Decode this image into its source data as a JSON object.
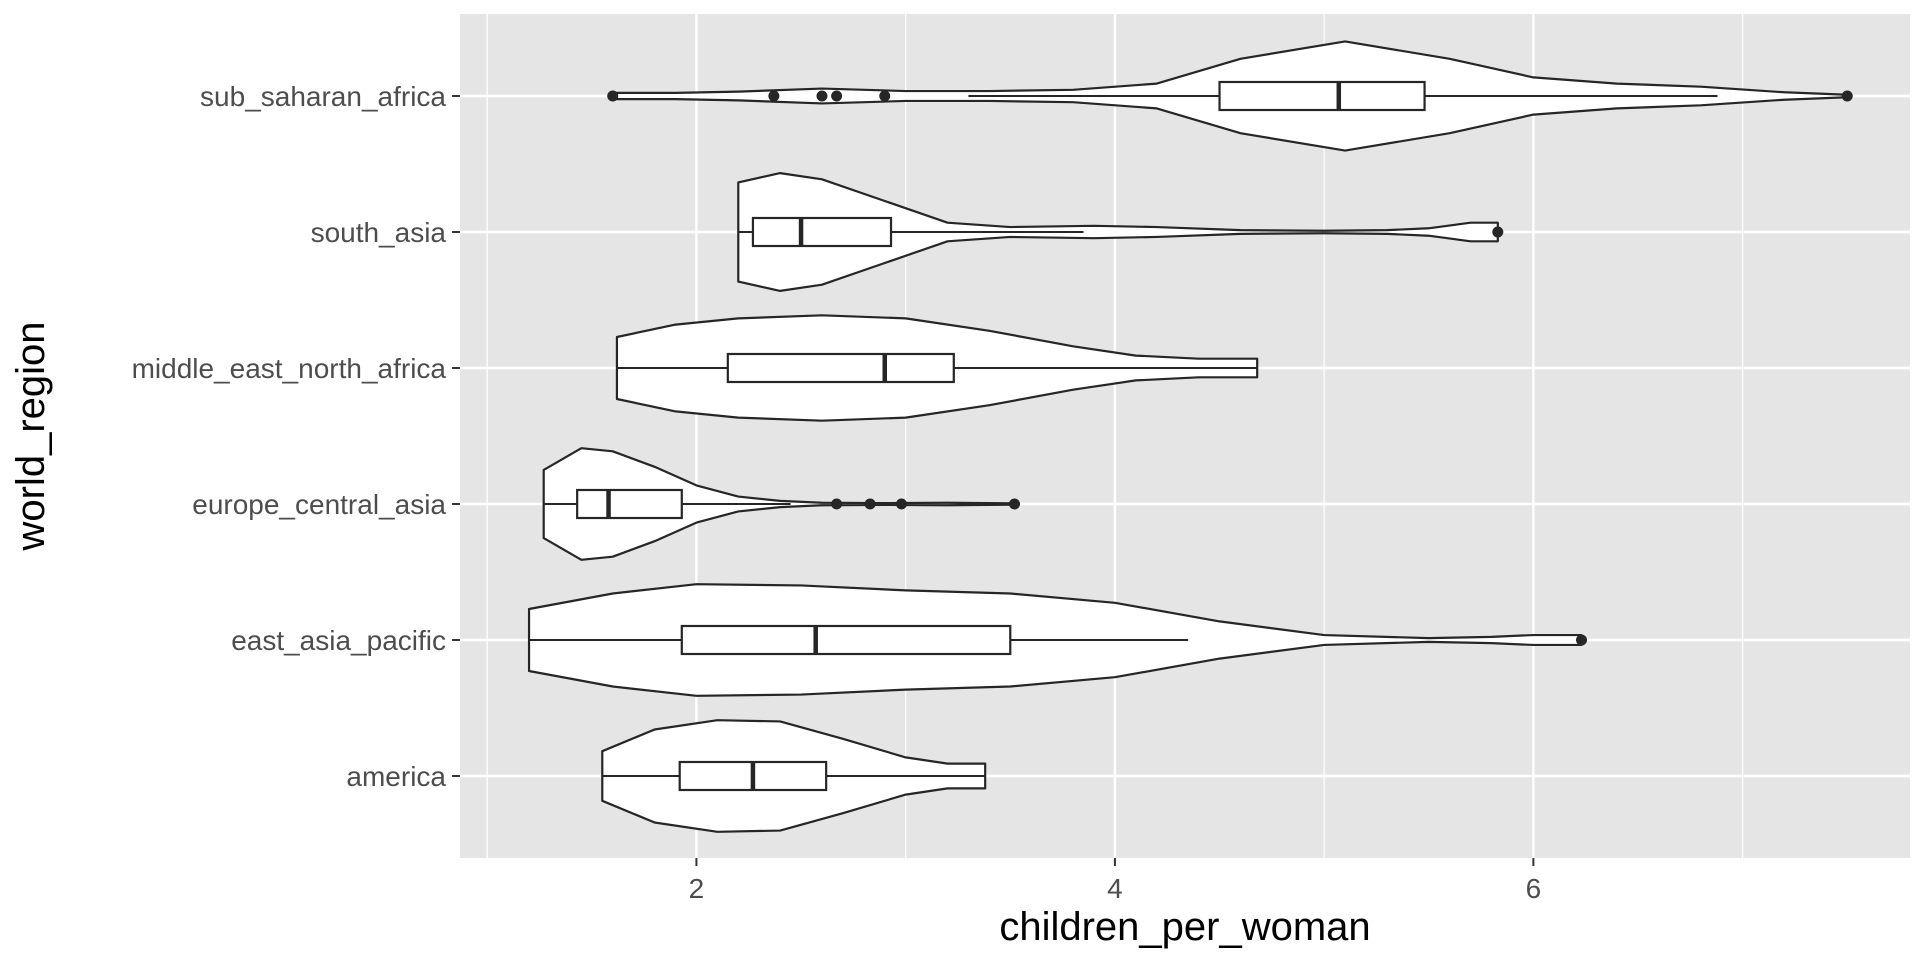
{
  "chart_data": {
    "type": "violin",
    "overlay": "boxplot",
    "xlabel": "children_per_woman",
    "ylabel": "world_region",
    "xlim": [
      0.87,
      7.8
    ],
    "x_ticks": [
      2,
      4,
      6
    ],
    "orientation": "horizontal",
    "grid": true,
    "legend": "none",
    "colors": {
      "panel_background": "#e5e5e5",
      "grid": "#ffffff",
      "fill": "#ffffff",
      "stroke": "#262626",
      "tick_text": "#4d4d4d",
      "title_text": "#000000"
    },
    "categories": [
      "sub_saharan_africa",
      "south_asia",
      "middle_east_north_africa",
      "europe_central_asia",
      "east_asia_pacific",
      "america"
    ],
    "groups": [
      {
        "name": "sub_saharan_africa",
        "min": 1.6,
        "max": 7.5,
        "q1": 4.5,
        "median": 5.07,
        "q3": 5.48,
        "whisker_low": 3.3,
        "whisker_high": 6.88,
        "outliers": [
          1.6,
          2.37,
          2.6,
          2.67,
          2.9,
          7.5
        ],
        "density": [
          [
            1.6,
            0.05
          ],
          [
            1.9,
            0.05
          ],
          [
            2.2,
            0.07
          ],
          [
            2.6,
            0.12
          ],
          [
            3.0,
            0.08
          ],
          [
            3.4,
            0.08
          ],
          [
            3.8,
            0.1
          ],
          [
            4.2,
            0.2
          ],
          [
            4.6,
            0.6
          ],
          [
            5.1,
            0.88
          ],
          [
            5.6,
            0.6
          ],
          [
            6.0,
            0.3
          ],
          [
            6.4,
            0.2
          ],
          [
            6.8,
            0.15
          ],
          [
            7.2,
            0.06
          ],
          [
            7.5,
            0.02
          ]
        ]
      },
      {
        "name": "south_asia",
        "min": 2.2,
        "max": 5.83,
        "q1": 2.27,
        "median": 2.5,
        "q3": 2.93,
        "whisker_low": 2.2,
        "whisker_high": 3.85,
        "outliers": [
          5.83
        ],
        "density": [
          [
            2.2,
            0.8
          ],
          [
            2.4,
            0.95
          ],
          [
            2.6,
            0.85
          ],
          [
            2.9,
            0.5
          ],
          [
            3.2,
            0.15
          ],
          [
            3.5,
            0.08
          ],
          [
            3.9,
            0.1
          ],
          [
            4.2,
            0.08
          ],
          [
            4.6,
            0.03
          ],
          [
            5.0,
            0.02
          ],
          [
            5.3,
            0.03
          ],
          [
            5.5,
            0.06
          ],
          [
            5.7,
            0.15
          ],
          [
            5.83,
            0.15
          ]
        ]
      },
      {
        "name": "middle_east_north_africa",
        "min": 1.62,
        "max": 4.68,
        "q1": 2.15,
        "median": 2.9,
        "q3": 3.23,
        "whisker_low": 1.62,
        "whisker_high": 4.68,
        "outliers": [],
        "density": [
          [
            1.62,
            0.5
          ],
          [
            1.9,
            0.7
          ],
          [
            2.2,
            0.8
          ],
          [
            2.6,
            0.85
          ],
          [
            3.0,
            0.8
          ],
          [
            3.4,
            0.6
          ],
          [
            3.8,
            0.35
          ],
          [
            4.1,
            0.2
          ],
          [
            4.4,
            0.15
          ],
          [
            4.68,
            0.15
          ]
        ]
      },
      {
        "name": "europe_central_asia",
        "min": 1.27,
        "max": 3.52,
        "q1": 1.43,
        "median": 1.58,
        "q3": 1.93,
        "whisker_low": 1.27,
        "whisker_high": 2.45,
        "outliers": [
          2.67,
          2.83,
          2.98,
          3.52
        ],
        "density": [
          [
            1.27,
            0.55
          ],
          [
            1.45,
            0.9
          ],
          [
            1.6,
            0.85
          ],
          [
            1.8,
            0.6
          ],
          [
            2.0,
            0.3
          ],
          [
            2.2,
            0.12
          ],
          [
            2.4,
            0.05
          ],
          [
            2.6,
            0.02
          ],
          [
            2.9,
            0.015
          ],
          [
            3.2,
            0.02
          ],
          [
            3.52,
            0.01
          ]
        ]
      },
      {
        "name": "east_asia_pacific",
        "min": 1.2,
        "max": 6.23,
        "q1": 1.93,
        "median": 2.57,
        "q3": 3.5,
        "whisker_low": 1.2,
        "whisker_high": 4.35,
        "outliers": [
          6.23
        ],
        "density": [
          [
            1.2,
            0.5
          ],
          [
            1.6,
            0.75
          ],
          [
            2.0,
            0.9
          ],
          [
            2.5,
            0.88
          ],
          [
            3.0,
            0.8
          ],
          [
            3.5,
            0.75
          ],
          [
            4.0,
            0.6
          ],
          [
            4.5,
            0.3
          ],
          [
            5.0,
            0.08
          ],
          [
            5.5,
            0.03
          ],
          [
            5.8,
            0.05
          ],
          [
            6.0,
            0.08
          ],
          [
            6.23,
            0.08
          ]
        ]
      },
      {
        "name": "america",
        "min": 1.55,
        "max": 3.38,
        "q1": 1.92,
        "median": 2.27,
        "q3": 2.62,
        "whisker_low": 1.55,
        "whisker_high": 3.38,
        "outliers": [],
        "density": [
          [
            1.55,
            0.4
          ],
          [
            1.8,
            0.75
          ],
          [
            2.1,
            0.9
          ],
          [
            2.4,
            0.88
          ],
          [
            2.7,
            0.6
          ],
          [
            3.0,
            0.3
          ],
          [
            3.2,
            0.2
          ],
          [
            3.38,
            0.2
          ]
        ]
      }
    ]
  }
}
